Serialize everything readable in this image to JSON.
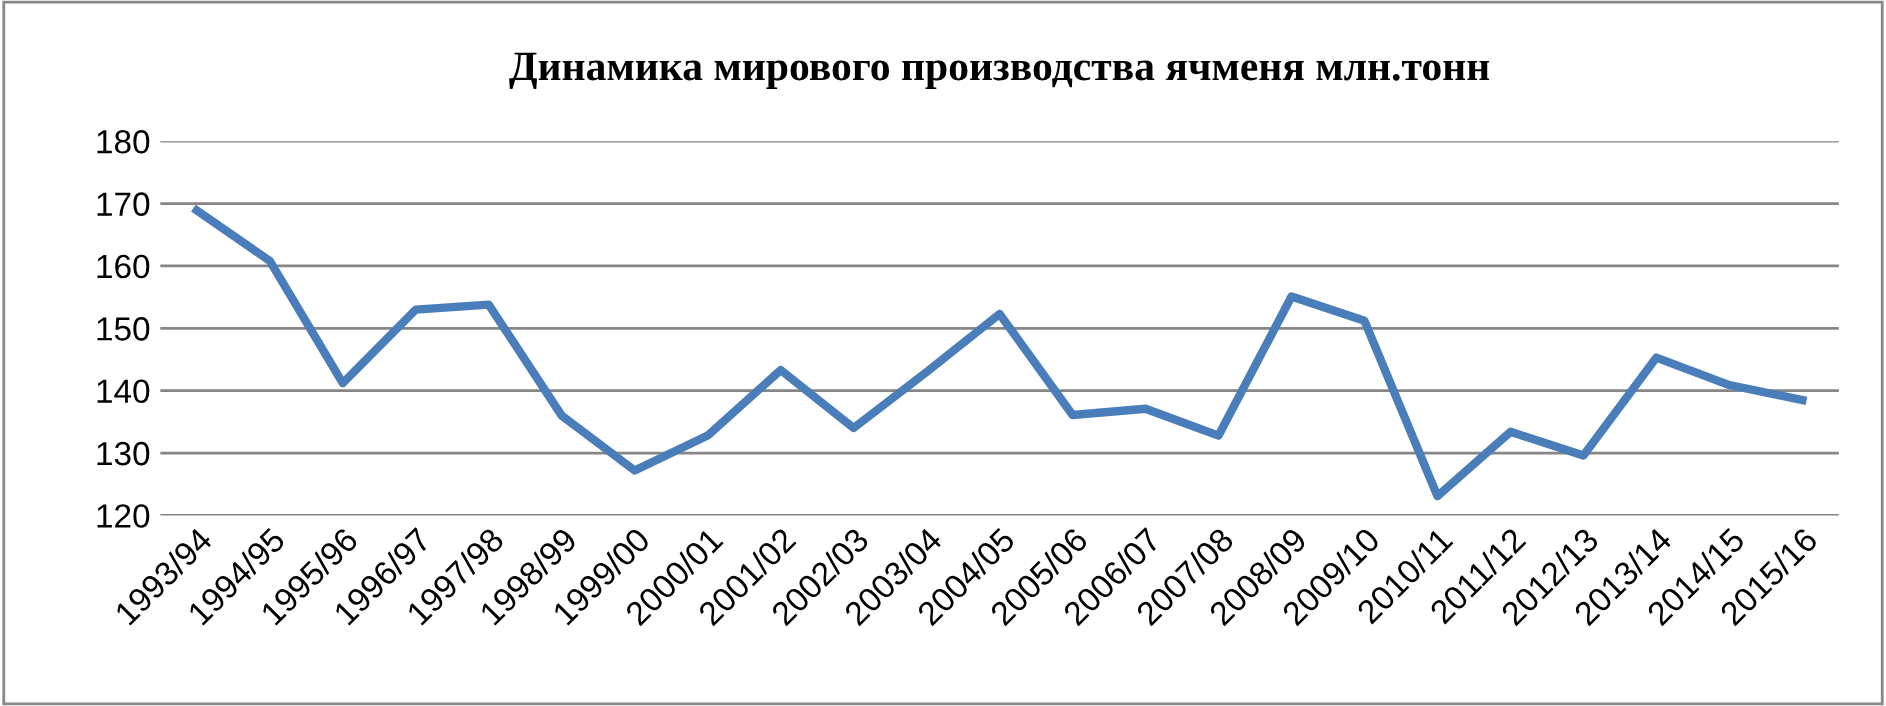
{
  "chart_data": {
    "type": "line",
    "title": "Динамика мирового производства ячменя млн.тонн",
    "categories": [
      "1993/94",
      "1994/95",
      "1995/96",
      "1996/97",
      "1997/98",
      "1998/99",
      "1999/00",
      "2000/01",
      "2001/02",
      "2002/03",
      "2003/04",
      "2004/05",
      "2005/06",
      "2006/07",
      "2007/08",
      "2008/09",
      "2009/10",
      "2010/11",
      "2011/12",
      "2012/13",
      "2013/14",
      "2014/15",
      "2015/16"
    ],
    "series": [
      {
        "color": "#4a7ebb",
        "values": [
          168.9,
          160.8,
          141.2,
          153.0,
          153.8,
          136.0,
          127.2,
          132.8,
          143.3,
          134.0,
          143.0,
          152.3,
          136.1,
          137.1,
          132.8,
          155.1,
          151.2,
          123.1,
          133.4,
          129.6,
          145.3,
          140.9,
          138.5
        ]
      }
    ],
    "ylim": [
      120,
      180
    ],
    "yticks": [
      120,
      130,
      140,
      150,
      160,
      170,
      180
    ],
    "grid": "y",
    "legend": false,
    "marker": "none",
    "line_style": "solid"
  }
}
